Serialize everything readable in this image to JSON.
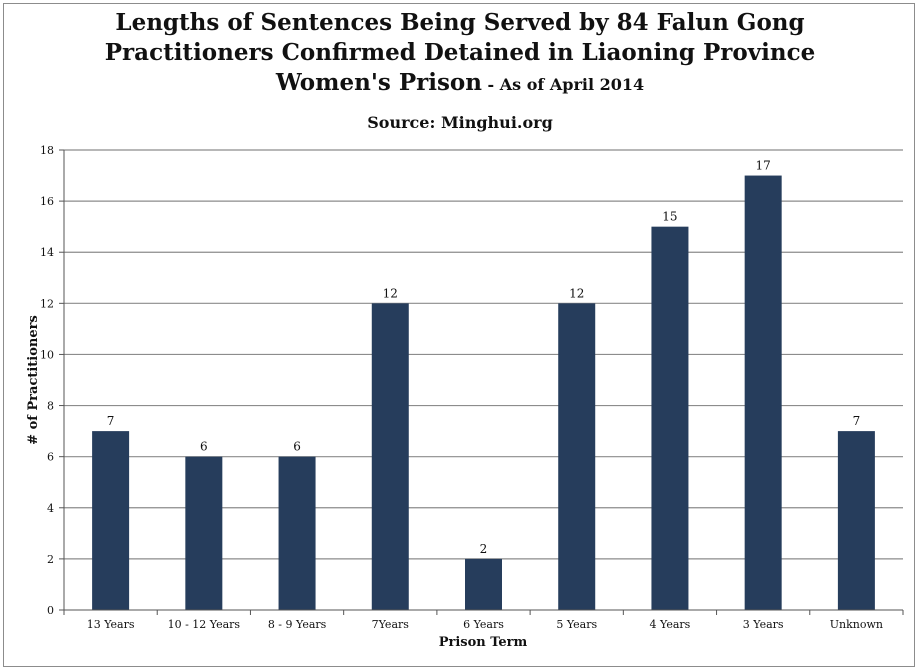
{
  "header": {
    "title_line1": "Lengths of Sentences Being Served by 84 Falun Gong",
    "title_line2": "Practitioners Confirmed Detained in Liaoning Province",
    "title_line3": "Women's Prison",
    "title_suffix": " - As of April 2014",
    "source": "Source: Minghui.org"
  },
  "colors": {
    "bar": "#263d5c",
    "grid": "#8c8c8c",
    "axis": "#555555"
  },
  "chart_data": {
    "type": "bar",
    "categories": [
      "13 Years",
      "10 - 12 Years",
      "8 - 9 Years",
      "7Years",
      "6 Years",
      "5 Years",
      "4 Years",
      "3 Years",
      "Unknown"
    ],
    "values": [
      7,
      6,
      6,
      12,
      2,
      12,
      15,
      17,
      7
    ],
    "data_labels": [
      "7",
      "6",
      "6",
      "12",
      "2",
      "12",
      "15",
      "17",
      "7"
    ],
    "xlabel": "Prison Term",
    "ylabel": "# of Practitioners",
    "ylim": [
      0,
      18
    ],
    "yticks": [
      0,
      2,
      4,
      6,
      8,
      10,
      12,
      14,
      16,
      18
    ],
    "grid": true,
    "legend": "none"
  }
}
